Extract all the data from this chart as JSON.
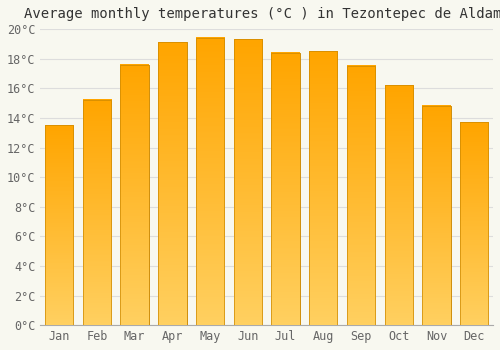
{
  "title": "Average monthly temperatures (°C ) in Tezontepec de Aldama",
  "months": [
    "Jan",
    "Feb",
    "Mar",
    "Apr",
    "May",
    "Jun",
    "Jul",
    "Aug",
    "Sep",
    "Oct",
    "Nov",
    "Dec"
  ],
  "values": [
    13.5,
    15.2,
    17.6,
    19.1,
    19.4,
    19.3,
    18.4,
    18.5,
    17.5,
    16.2,
    14.8,
    13.7
  ],
  "bar_color_top": "#FFA500",
  "bar_color_bottom": "#FFD060",
  "bar_edge_color": "#CC8800",
  "background_color": "#F8F8F0",
  "grid_color": "#DDDDDD",
  "ylim": [
    0,
    20
  ],
  "ytick_step": 2,
  "title_fontsize": 10,
  "tick_fontsize": 8.5,
  "figsize": [
    5.0,
    3.5
  ],
  "dpi": 100
}
